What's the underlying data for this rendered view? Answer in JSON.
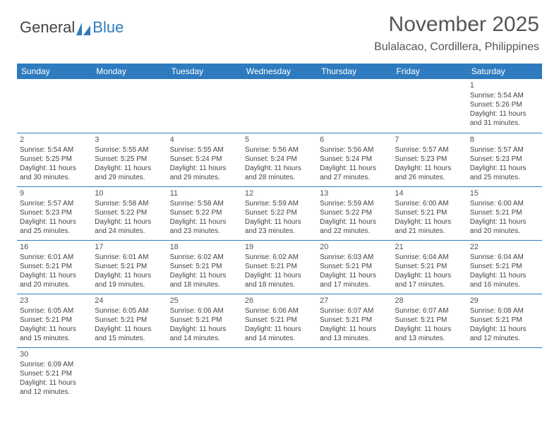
{
  "logo": {
    "part1": "General",
    "part2": "Blue"
  },
  "header": {
    "month_year": "November 2025",
    "location": "Bulalacao, Cordillera, Philippines"
  },
  "colors": {
    "header_bg": "#2f7bbf",
    "header_text": "#ffffff",
    "border": "#2f7bbf",
    "body_text": "#444444",
    "title_text": "#555555"
  },
  "weekdays": [
    "Sunday",
    "Monday",
    "Tuesday",
    "Wednesday",
    "Thursday",
    "Friday",
    "Saturday"
  ],
  "weeks": [
    [
      null,
      null,
      null,
      null,
      null,
      null,
      {
        "n": "1",
        "sr": "Sunrise: 5:54 AM",
        "ss": "Sunset: 5:26 PM",
        "d1": "Daylight: 11 hours",
        "d2": "and 31 minutes."
      }
    ],
    [
      {
        "n": "2",
        "sr": "Sunrise: 5:54 AM",
        "ss": "Sunset: 5:25 PM",
        "d1": "Daylight: 11 hours",
        "d2": "and 30 minutes."
      },
      {
        "n": "3",
        "sr": "Sunrise: 5:55 AM",
        "ss": "Sunset: 5:25 PM",
        "d1": "Daylight: 11 hours",
        "d2": "and 29 minutes."
      },
      {
        "n": "4",
        "sr": "Sunrise: 5:55 AM",
        "ss": "Sunset: 5:24 PM",
        "d1": "Daylight: 11 hours",
        "d2": "and 29 minutes."
      },
      {
        "n": "5",
        "sr": "Sunrise: 5:56 AM",
        "ss": "Sunset: 5:24 PM",
        "d1": "Daylight: 11 hours",
        "d2": "and 28 minutes."
      },
      {
        "n": "6",
        "sr": "Sunrise: 5:56 AM",
        "ss": "Sunset: 5:24 PM",
        "d1": "Daylight: 11 hours",
        "d2": "and 27 minutes."
      },
      {
        "n": "7",
        "sr": "Sunrise: 5:57 AM",
        "ss": "Sunset: 5:23 PM",
        "d1": "Daylight: 11 hours",
        "d2": "and 26 minutes."
      },
      {
        "n": "8",
        "sr": "Sunrise: 5:57 AM",
        "ss": "Sunset: 5:23 PM",
        "d1": "Daylight: 11 hours",
        "d2": "and 25 minutes."
      }
    ],
    [
      {
        "n": "9",
        "sr": "Sunrise: 5:57 AM",
        "ss": "Sunset: 5:23 PM",
        "d1": "Daylight: 11 hours",
        "d2": "and 25 minutes."
      },
      {
        "n": "10",
        "sr": "Sunrise: 5:58 AM",
        "ss": "Sunset: 5:22 PM",
        "d1": "Daylight: 11 hours",
        "d2": "and 24 minutes."
      },
      {
        "n": "11",
        "sr": "Sunrise: 5:58 AM",
        "ss": "Sunset: 5:22 PM",
        "d1": "Daylight: 11 hours",
        "d2": "and 23 minutes."
      },
      {
        "n": "12",
        "sr": "Sunrise: 5:59 AM",
        "ss": "Sunset: 5:22 PM",
        "d1": "Daylight: 11 hours",
        "d2": "and 23 minutes."
      },
      {
        "n": "13",
        "sr": "Sunrise: 5:59 AM",
        "ss": "Sunset: 5:22 PM",
        "d1": "Daylight: 11 hours",
        "d2": "and 22 minutes."
      },
      {
        "n": "14",
        "sr": "Sunrise: 6:00 AM",
        "ss": "Sunset: 5:21 PM",
        "d1": "Daylight: 11 hours",
        "d2": "and 21 minutes."
      },
      {
        "n": "15",
        "sr": "Sunrise: 6:00 AM",
        "ss": "Sunset: 5:21 PM",
        "d1": "Daylight: 11 hours",
        "d2": "and 20 minutes."
      }
    ],
    [
      {
        "n": "16",
        "sr": "Sunrise: 6:01 AM",
        "ss": "Sunset: 5:21 PM",
        "d1": "Daylight: 11 hours",
        "d2": "and 20 minutes."
      },
      {
        "n": "17",
        "sr": "Sunrise: 6:01 AM",
        "ss": "Sunset: 5:21 PM",
        "d1": "Daylight: 11 hours",
        "d2": "and 19 minutes."
      },
      {
        "n": "18",
        "sr": "Sunrise: 6:02 AM",
        "ss": "Sunset: 5:21 PM",
        "d1": "Daylight: 11 hours",
        "d2": "and 18 minutes."
      },
      {
        "n": "19",
        "sr": "Sunrise: 6:02 AM",
        "ss": "Sunset: 5:21 PM",
        "d1": "Daylight: 11 hours",
        "d2": "and 18 minutes."
      },
      {
        "n": "20",
        "sr": "Sunrise: 6:03 AM",
        "ss": "Sunset: 5:21 PM",
        "d1": "Daylight: 11 hours",
        "d2": "and 17 minutes."
      },
      {
        "n": "21",
        "sr": "Sunrise: 6:04 AM",
        "ss": "Sunset: 5:21 PM",
        "d1": "Daylight: 11 hours",
        "d2": "and 17 minutes."
      },
      {
        "n": "22",
        "sr": "Sunrise: 6:04 AM",
        "ss": "Sunset: 5:21 PM",
        "d1": "Daylight: 11 hours",
        "d2": "and 16 minutes."
      }
    ],
    [
      {
        "n": "23",
        "sr": "Sunrise: 6:05 AM",
        "ss": "Sunset: 5:21 PM",
        "d1": "Daylight: 11 hours",
        "d2": "and 15 minutes."
      },
      {
        "n": "24",
        "sr": "Sunrise: 6:05 AM",
        "ss": "Sunset: 5:21 PM",
        "d1": "Daylight: 11 hours",
        "d2": "and 15 minutes."
      },
      {
        "n": "25",
        "sr": "Sunrise: 6:06 AM",
        "ss": "Sunset: 5:21 PM",
        "d1": "Daylight: 11 hours",
        "d2": "and 14 minutes."
      },
      {
        "n": "26",
        "sr": "Sunrise: 6:06 AM",
        "ss": "Sunset: 5:21 PM",
        "d1": "Daylight: 11 hours",
        "d2": "and 14 minutes."
      },
      {
        "n": "27",
        "sr": "Sunrise: 6:07 AM",
        "ss": "Sunset: 5:21 PM",
        "d1": "Daylight: 11 hours",
        "d2": "and 13 minutes."
      },
      {
        "n": "28",
        "sr": "Sunrise: 6:07 AM",
        "ss": "Sunset: 5:21 PM",
        "d1": "Daylight: 11 hours",
        "d2": "and 13 minutes."
      },
      {
        "n": "29",
        "sr": "Sunrise: 6:08 AM",
        "ss": "Sunset: 5:21 PM",
        "d1": "Daylight: 11 hours",
        "d2": "and 12 minutes."
      }
    ],
    [
      {
        "n": "30",
        "sr": "Sunrise: 6:09 AM",
        "ss": "Sunset: 5:21 PM",
        "d1": "Daylight: 11 hours",
        "d2": "and 12 minutes."
      },
      null,
      null,
      null,
      null,
      null,
      null
    ]
  ]
}
